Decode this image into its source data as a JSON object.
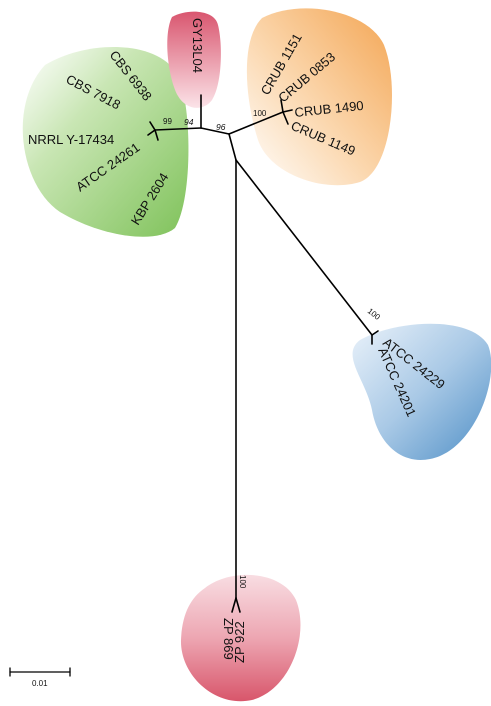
{
  "colors": {
    "green": "#8fcb6a",
    "pink_top": "#e98aa0",
    "orange": "#f6b26b",
    "blue": "#6fa6d4",
    "pink_bottom": "#e8808f"
  },
  "clades": {
    "green": {
      "support": "99",
      "taxa": [
        "CBS 6938",
        "CBS 7918",
        "NRRL Y-17434",
        "ATCC 24261",
        "KBP 2604"
      ]
    },
    "pink_top": {
      "support": "94",
      "taxa": [
        "GY13L04"
      ]
    },
    "orange": {
      "support": "100",
      "taxa": [
        "CRUB 1151",
        "CRUB 0853",
        "CRUB 1490",
        "CRUB 1149"
      ]
    },
    "internal": {
      "support": "96"
    },
    "blue": {
      "support": "100",
      "taxa": [
        "ATCC 24229",
        "ATCC 24201"
      ]
    },
    "pink_bottom": {
      "support": "100",
      "taxa": [
        "ZP 922",
        "ZP 869"
      ]
    }
  },
  "scale_bar": {
    "label": "0.01"
  }
}
